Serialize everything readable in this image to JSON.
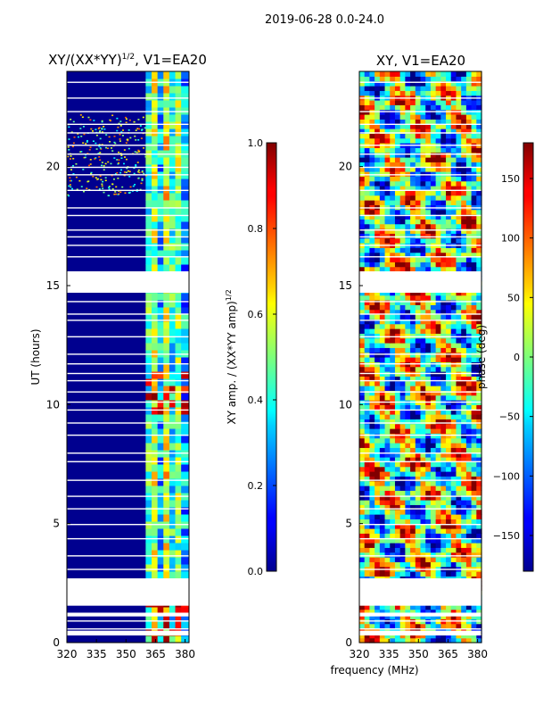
{
  "suptitle": "2019-06-28 0.0-24.0",
  "chart_data": [
    {
      "type": "heatmap",
      "title": "XY/(XX*YY)^1/2, V1=EA20",
      "title_main": "XY/(XX*YY)",
      "title_sup": "1/2",
      "title_rest": ", V1=EA20",
      "xlabel": "frequency (MHz)",
      "ylabel": "UT (hours)",
      "xlim": [
        320,
        382
      ],
      "ylim": [
        0,
        24
      ],
      "xticks": [
        "320",
        "335",
        "350",
        "365",
        "380"
      ],
      "xtick_values": [
        320,
        335,
        350,
        365,
        380
      ],
      "yticks": [
        "0",
        "5",
        "10",
        "15",
        "20"
      ],
      "ytick_values": [
        0,
        5,
        10,
        15,
        20
      ],
      "gaps_hours": [
        [
          0.3,
          0.5
        ],
        [
          1.1,
          1.25
        ],
        [
          1.55,
          2.7
        ],
        [
          14.7,
          15.6
        ]
      ],
      "colorbar": {
        "label_main": "XY amp. / (XX*YY amp)",
        "label_sup": "1/2",
        "range": [
          0.0,
          1.0
        ],
        "ticks": [
          "0.0",
          "0.2",
          "0.4",
          "0.6",
          "0.8",
          "1.0"
        ],
        "tick_values": [
          0.0,
          0.2,
          0.4,
          0.6,
          0.8,
          1.0
        ]
      }
    },
    {
      "type": "heatmap",
      "title": "XY, V1=EA20",
      "xlabel": "frequency (MHz)",
      "xlim": [
        320,
        382
      ],
      "ylim": [
        0,
        24
      ],
      "xticks": [
        "320",
        "335",
        "350",
        "365",
        "380"
      ],
      "xtick_values": [
        320,
        335,
        350,
        365,
        380
      ],
      "yticks": [
        "0",
        "5",
        "10",
        "15",
        "20"
      ],
      "ytick_values": [
        0,
        5,
        10,
        15,
        20
      ],
      "gaps_hours": [
        [
          0.3,
          0.5
        ],
        [
          1.1,
          1.25
        ],
        [
          1.55,
          2.7
        ],
        [
          14.7,
          15.6
        ]
      ],
      "colorbar": {
        "label": "phase (deg)",
        "range": [
          -180,
          180
        ],
        "ticks": [
          "150",
          "100",
          "50",
          "0",
          "−50",
          "−100",
          "−150"
        ],
        "tick_values": [
          150,
          100,
          50,
          0,
          -50,
          -100,
          -150
        ]
      }
    }
  ]
}
